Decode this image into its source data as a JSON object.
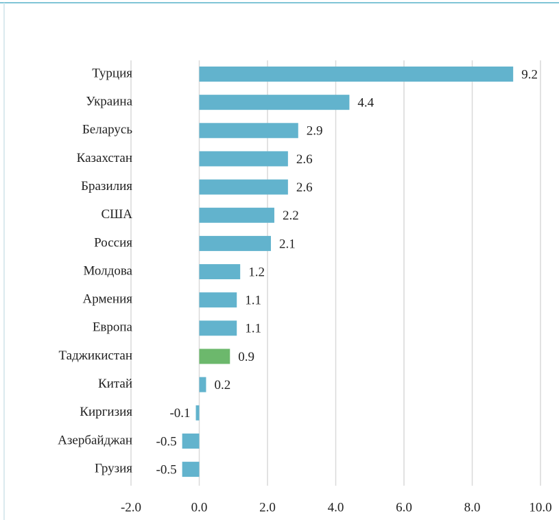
{
  "chart_data": {
    "type": "bar",
    "orientation": "horizontal",
    "categories": [
      "Турция",
      "Украина",
      "Беларусь",
      "Казахстан",
      "Бразилия",
      "США",
      "Россия",
      "Молдова",
      "Армения",
      "Европа",
      "Таджикистан",
      "Китай",
      "Киргизия",
      "Азербайджан",
      "Грузия"
    ],
    "values": [
      9.2,
      4.4,
      2.9,
      2.6,
      2.6,
      2.2,
      2.1,
      1.2,
      1.1,
      1.1,
      0.9,
      0.2,
      -0.1,
      -0.5,
      -0.5
    ],
    "colors": [
      "#62b3cd",
      "#62b3cd",
      "#62b3cd",
      "#62b3cd",
      "#62b3cd",
      "#62b3cd",
      "#62b3cd",
      "#62b3cd",
      "#62b3cd",
      "#62b3cd",
      "#6cb86c",
      "#62b3cd",
      "#62b3cd",
      "#62b3cd",
      "#62b3cd"
    ],
    "xlim": [
      -2,
      10
    ],
    "xticks": [
      {
        "value": -2,
        "label": "-2.0"
      },
      {
        "value": 0,
        "label": "0.0"
      },
      {
        "value": 2,
        "label": "2.0"
      },
      {
        "value": 4,
        "label": "4.0"
      },
      {
        "value": 6,
        "label": "6.0"
      },
      {
        "value": 8,
        "label": "8.0"
      },
      {
        "value": 10,
        "label": "10.0"
      }
    ],
    "grid": true
  }
}
